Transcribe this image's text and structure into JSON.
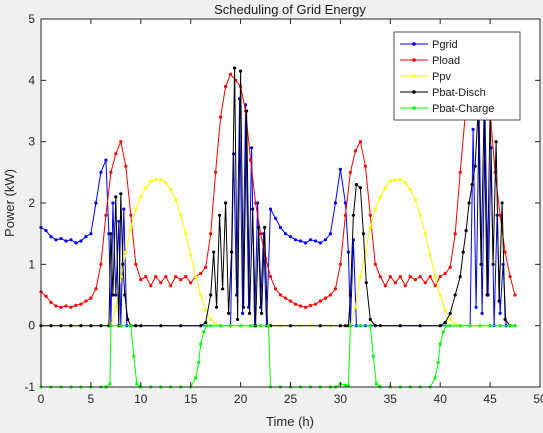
{
  "chart_data": {
    "type": "line",
    "title": "Scheduling of Grid Energy",
    "xlabel": "Time (h)",
    "ylabel": "Power (kW)",
    "xlim": [
      0,
      50
    ],
    "ylim": [
      -1,
      5
    ],
    "xticks": [
      0,
      5,
      10,
      15,
      20,
      25,
      30,
      35,
      40,
      45,
      50
    ],
    "yticks": [
      -1,
      0,
      1,
      2,
      3,
      4,
      5
    ],
    "grid": false,
    "legend_position": "top-right",
    "series": [
      {
        "name": "Pgrid",
        "color": "#0000ff",
        "marker": "circle",
        "x": [
          0,
          0.5,
          1,
          1.5,
          2,
          2.5,
          3,
          3.5,
          4,
          4.5,
          5,
          5.5,
          6,
          6.5,
          6.8,
          7,
          7.2,
          7.5,
          7.8,
          8,
          8.3,
          8.6,
          9,
          9.5,
          19,
          19.3,
          19.6,
          19.9,
          20.2,
          20.5,
          20.8,
          21.1,
          21.4,
          21.7,
          22,
          22.3,
          22.6,
          23,
          23.5,
          24,
          24.5,
          25,
          25.5,
          26,
          26.5,
          27,
          27.5,
          28,
          28.5,
          29,
          29.5,
          30,
          30.5,
          30.8,
          31,
          31.3,
          31.6,
          32,
          32.5,
          33,
          43,
          43.3,
          43.6,
          43.9,
          44.2,
          44.5,
          44.8,
          45.1,
          45.4,
          45.7,
          46,
          46.3,
          46.6,
          47
        ],
        "y": [
          1.6,
          1.55,
          1.45,
          1.4,
          1.42,
          1.38,
          1.4,
          1.35,
          1.38,
          1.45,
          1.5,
          2.0,
          2.5,
          2.7,
          1.5,
          0.0,
          2.0,
          0.5,
          1.7,
          0.0,
          1.9,
          0.0,
          0.0,
          0.0,
          0.0,
          2.8,
          0.5,
          3.7,
          0.2,
          3.6,
          0.3,
          2.9,
          0.0,
          2.0,
          0.3,
          1.5,
          0.0,
          1.9,
          1.75,
          1.6,
          1.5,
          1.45,
          1.4,
          1.38,
          1.35,
          1.4,
          1.38,
          1.35,
          1.4,
          1.5,
          2.0,
          2.55,
          2.0,
          1.2,
          0.0,
          1.4,
          0.0,
          0.0,
          0.0,
          0.0,
          0.0,
          3.2,
          0.3,
          3.5,
          0.2,
          3.4,
          0.5,
          2.9,
          0.0,
          1.8,
          0.2,
          1.0,
          0.0,
          0.0
        ]
      },
      {
        "name": "Pload",
        "color": "#ff0000",
        "marker": "circle",
        "x": [
          0,
          0.5,
          1,
          1.5,
          2,
          2.5,
          3,
          3.5,
          4,
          4.5,
          5,
          5.5,
          6,
          6.5,
          7,
          7.5,
          8,
          8.5,
          9,
          9.5,
          10,
          10.5,
          11,
          11.5,
          12,
          12.5,
          13,
          13.5,
          14,
          14.5,
          15,
          15.5,
          16,
          16.5,
          17,
          17.5,
          18,
          18.5,
          19,
          19.5,
          20,
          20.5,
          21,
          21.5,
          22,
          22.5,
          23,
          23.5,
          24,
          24.5,
          25,
          25.5,
          26,
          26.5,
          27,
          27.5,
          28,
          28.5,
          29,
          29.5,
          30,
          30.5,
          31,
          31.5,
          32,
          32.5,
          33,
          33.5,
          34,
          34.5,
          35,
          35.5,
          36,
          36.5,
          37,
          37.5,
          38,
          38.5,
          39,
          39.5,
          40,
          40.5,
          41,
          41.5,
          42,
          42.5,
          43,
          43.5,
          44,
          44.5,
          45,
          45.5,
          46,
          46.5,
          47,
          47.5
        ],
        "y": [
          0.55,
          0.48,
          0.38,
          0.32,
          0.3,
          0.32,
          0.3,
          0.33,
          0.35,
          0.4,
          0.45,
          0.6,
          1.0,
          1.8,
          2.5,
          2.8,
          3.0,
          2.6,
          1.8,
          1.0,
          0.75,
          0.8,
          0.65,
          0.8,
          0.7,
          0.8,
          0.65,
          0.8,
          0.75,
          0.8,
          0.7,
          0.8,
          0.85,
          0.95,
          1.5,
          2.5,
          3.4,
          3.9,
          4.1,
          4.0,
          3.9,
          3.5,
          2.7,
          2.0,
          1.5,
          1.1,
          0.8,
          0.6,
          0.5,
          0.45,
          0.4,
          0.35,
          0.32,
          0.3,
          0.33,
          0.35,
          0.4,
          0.45,
          0.5,
          0.6,
          1.0,
          1.8,
          2.5,
          2.85,
          3.0,
          2.6,
          1.8,
          1.0,
          0.8,
          0.65,
          0.8,
          0.7,
          0.8,
          0.65,
          0.8,
          0.75,
          0.8,
          0.7,
          0.8,
          0.65,
          0.8,
          0.85,
          0.95,
          1.5,
          2.5,
          3.4,
          3.8,
          3.9,
          4.1,
          3.9,
          3.5,
          2.5,
          1.8,
          1.2,
          0.8,
          0.5
        ]
      },
      {
        "name": "Ppv",
        "color": "#ffff00",
        "marker": "circle",
        "x": [
          0,
          1,
          2,
          3,
          4,
          5,
          6,
          7,
          7.5,
          8,
          8.5,
          9,
          9.5,
          10,
          10.5,
          11,
          11.5,
          12,
          12.5,
          13,
          13.5,
          14,
          14.5,
          15,
          15.5,
          16,
          16.5,
          17,
          17.5,
          18,
          19,
          20,
          21,
          22,
          23,
          24,
          25,
          26,
          27,
          28,
          29,
          30,
          31,
          31.5,
          32,
          32.5,
          33,
          33.5,
          34,
          34.5,
          35,
          35.5,
          36,
          36.5,
          37,
          37.5,
          38,
          38.5,
          39,
          39.5,
          40,
          40.5,
          41,
          41.5,
          42,
          43,
          44,
          45,
          46,
          47
        ],
        "y": [
          0,
          0,
          0,
          0,
          0,
          0,
          0,
          0,
          0.3,
          0.8,
          1.2,
          1.6,
          1.9,
          2.1,
          2.25,
          2.35,
          2.38,
          2.38,
          2.33,
          2.22,
          2.05,
          1.8,
          1.5,
          1.15,
          0.8,
          0.5,
          0.25,
          0.1,
          0.02,
          0,
          0,
          0,
          0,
          0,
          0,
          0,
          0,
          0,
          0,
          0,
          0,
          0,
          0,
          0.3,
          0.8,
          1.2,
          1.6,
          1.9,
          2.1,
          2.25,
          2.35,
          2.38,
          2.38,
          2.33,
          2.22,
          2.05,
          1.8,
          1.5,
          1.15,
          0.8,
          0.5,
          0.25,
          0.1,
          0.02,
          0,
          0,
          0,
          0,
          0,
          0
        ]
      },
      {
        "name": "Pbat-Disch",
        "color": "#000000",
        "marker": "circle",
        "x": [
          0,
          1,
          2,
          3,
          4,
          5,
          6,
          6.8,
          7,
          7.2,
          7.5,
          7.8,
          8,
          8.2,
          8.4,
          8.7,
          9,
          9.5,
          10,
          12,
          14,
          16,
          16.5,
          17,
          17.3,
          17.6,
          17.9,
          18.2,
          18.5,
          18.8,
          19.1,
          19.4,
          19.7,
          20,
          20.3,
          20.6,
          20.9,
          21.2,
          21.5,
          21.8,
          22.1,
          22.4,
          22.7,
          23,
          25,
          28,
          30,
          30.5,
          30.8,
          31,
          31.3,
          31.6,
          32,
          32.3,
          32.6,
          33,
          33.5,
          34,
          36,
          38,
          40,
          40.5,
          41,
          41.5,
          42,
          42.3,
          42.6,
          42.9,
          43.2,
          43.5,
          43.8,
          44.1,
          44.4,
          44.7,
          45,
          45.3,
          45.6,
          45.9,
          46.2,
          46.5,
          47,
          47.5
        ],
        "y": [
          0,
          0,
          0,
          0,
          0,
          0,
          0,
          0,
          1.5,
          0.5,
          2.1,
          0.0,
          2.15,
          1.0,
          0.5,
          0.1,
          0,
          0,
          0,
          0,
          0,
          0,
          0.05,
          0.5,
          1.2,
          0.3,
          1.8,
          0.6,
          2.0,
          0.2,
          1.2,
          4.2,
          0.1,
          4.15,
          0.3,
          3.5,
          0.2,
          1.9,
          0.0,
          1.6,
          0.2,
          1.6,
          0.0,
          0,
          0,
          0,
          0,
          0,
          0.0,
          0.5,
          1.8,
          2.3,
          2.25,
          1.5,
          0.7,
          0.1,
          0,
          0,
          0,
          0,
          0,
          0.05,
          0.2,
          0.5,
          0.8,
          1.2,
          1.55,
          2.0,
          2.3,
          2.6,
          3.5,
          1.0,
          3.5,
          0.5,
          3.5,
          1.0,
          3.0,
          0.4,
          2.0,
          0.1,
          0,
          0
        ]
      },
      {
        "name": "Pbat-Charge",
        "color": "#00ff00",
        "marker": "circle",
        "x": [
          0,
          1,
          2,
          3,
          4,
          5,
          6,
          6.5,
          6.9,
          7,
          8,
          9,
          9.3,
          9.6,
          9.9,
          10,
          11,
          12,
          13,
          14,
          15,
          15.5,
          15.8,
          16,
          16.3,
          16.6,
          17,
          18,
          19,
          20,
          21,
          22,
          22.8,
          23,
          24,
          25,
          26,
          27,
          28,
          29,
          29.5,
          30,
          30.5,
          30.8,
          31,
          32,
          33,
          33.3,
          33.6,
          33.9,
          34,
          35,
          36,
          37,
          38,
          39,
          39.5,
          39.8,
          40,
          40.3,
          40.6,
          41,
          42,
          43,
          44,
          45,
          46,
          47,
          47.5
        ],
        "y": [
          -1,
          -1,
          -1,
          -1,
          -1,
          -1,
          -1,
          -1,
          -0.95,
          0,
          0,
          0,
          -0.5,
          -0.95,
          -0.99,
          -1,
          -1,
          -1,
          -1,
          -1,
          -1,
          -0.85,
          -0.6,
          -0.3,
          -0.1,
          0,
          0,
          0,
          0,
          0,
          0,
          0,
          0,
          -1,
          -1,
          -1,
          -1,
          -1,
          -1,
          -1,
          -1,
          -0.95,
          -0.97,
          -0.98,
          0,
          0,
          0,
          -0.5,
          -0.95,
          -0.99,
          -1,
          -1,
          -1,
          -1,
          -1,
          -1,
          -0.85,
          -0.6,
          -0.3,
          -0.1,
          0,
          0,
          0,
          0,
          0,
          0,
          0,
          0,
          0
        ]
      }
    ]
  }
}
